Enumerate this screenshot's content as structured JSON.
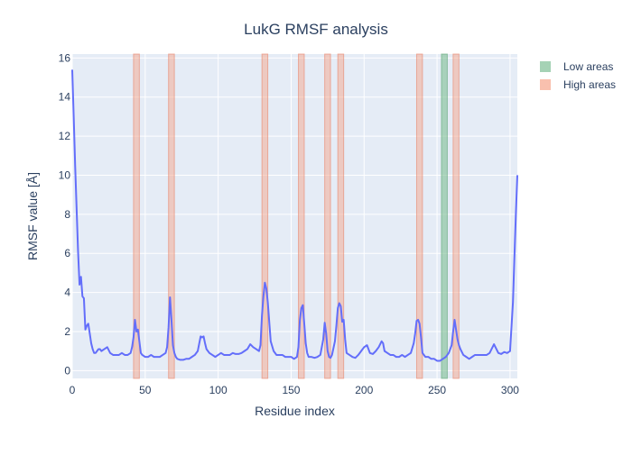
{
  "chart_data": {
    "type": "line",
    "title": "LukG RMSF analysis",
    "xlabel": "Residue index",
    "ylabel": "RMSF value [Å]",
    "xlim": [
      0,
      305
    ],
    "ylim": [
      -0.4,
      16.2
    ],
    "xticks": [
      0,
      50,
      100,
      150,
      200,
      250,
      300
    ],
    "yticks": [
      0,
      2,
      4,
      6,
      8,
      10,
      12,
      14,
      16
    ],
    "grid": true,
    "legend_position": "top-right",
    "colors": {
      "line": "#636efa",
      "high_band": "#f6a58c",
      "low_band": "#7fbf95",
      "plot_bg": "#e5ecf6"
    },
    "legend": [
      {
        "name": "Low areas",
        "color": "#7fbf95"
      },
      {
        "name": "High areas",
        "color": "#f6a58c"
      }
    ],
    "low_areas": [
      [
        253,
        257
      ]
    ],
    "high_areas": [
      [
        42,
        46
      ],
      [
        66,
        70
      ],
      [
        130,
        134
      ],
      [
        155,
        159
      ],
      [
        173,
        177
      ],
      [
        182,
        186
      ],
      [
        236,
        240
      ],
      [
        261,
        265
      ]
    ],
    "series": [
      {
        "x": [
          0,
          1,
          2,
          3,
          4,
          5,
          6,
          7,
          8,
          9,
          10,
          11,
          12,
          13,
          14,
          15,
          16,
          17,
          18,
          19,
          20,
          22,
          24,
          26,
          28,
          30,
          32,
          34,
          36,
          38,
          40,
          41,
          42,
          43,
          44,
          45,
          46,
          47,
          48,
          50,
          52,
          54,
          56,
          58,
          60,
          62,
          64,
          65,
          66,
          67,
          68,
          69,
          70,
          71,
          72,
          74,
          76,
          78,
          80,
          82,
          84,
          86,
          88,
          89,
          90,
          91,
          92,
          94,
          96,
          98,
          100,
          102,
          104,
          106,
          108,
          110,
          112,
          114,
          116,
          118,
          120,
          122,
          124,
          126,
          128,
          129,
          130,
          131,
          132,
          133,
          134,
          135,
          136,
          138,
          140,
          142,
          144,
          146,
          148,
          150,
          152,
          154,
          155,
          156,
          157,
          158,
          159,
          160,
          161,
          162,
          164,
          166,
          168,
          170,
          171,
          172,
          173,
          174,
          175,
          176,
          177,
          178,
          180,
          181,
          182,
          183,
          184,
          185,
          186,
          187,
          188,
          190,
          192,
          194,
          196,
          198,
          200,
          202,
          204,
          206,
          208,
          210,
          212,
          213,
          214,
          216,
          218,
          220,
          222,
          224,
          226,
          228,
          230,
          232,
          234,
          235,
          236,
          237,
          238,
          239,
          240,
          242,
          244,
          246,
          248,
          250,
          252,
          254,
          256,
          258,
          260,
          261,
          262,
          263,
          264,
          265,
          266,
          268,
          270,
          272,
          274,
          276,
          278,
          280,
          282,
          284,
          286,
          288,
          289,
          290,
          292,
          294,
          296,
          298,
          300,
          302,
          303,
          304,
          305
        ],
        "y": [
          15.4,
          13.0,
          10.5,
          8.3,
          6.1,
          4.4,
          4.8,
          3.8,
          3.7,
          2.1,
          2.3,
          2.4,
          1.9,
          1.4,
          1.1,
          0.9,
          0.9,
          1.0,
          1.1,
          1.1,
          1.0,
          1.1,
          1.2,
          0.9,
          0.8,
          0.8,
          0.8,
          0.9,
          0.8,
          0.8,
          0.9,
          1.2,
          1.7,
          2.6,
          2.0,
          2.1,
          1.5,
          0.9,
          0.8,
          0.7,
          0.7,
          0.8,
          0.7,
          0.7,
          0.7,
          0.8,
          0.9,
          1.2,
          2.2,
          3.75,
          2.6,
          1.3,
          0.9,
          0.7,
          0.6,
          0.55,
          0.55,
          0.6,
          0.6,
          0.7,
          0.8,
          1.0,
          1.75,
          1.7,
          1.75,
          1.4,
          1.1,
          0.9,
          0.8,
          0.7,
          0.8,
          0.9,
          0.8,
          0.8,
          0.8,
          0.9,
          0.85,
          0.85,
          0.9,
          1.0,
          1.1,
          1.35,
          1.2,
          1.1,
          1.0,
          1.3,
          2.8,
          3.8,
          4.5,
          4.2,
          3.5,
          2.5,
          1.5,
          1.0,
          0.8,
          0.8,
          0.8,
          0.7,
          0.7,
          0.7,
          0.6,
          0.7,
          1.2,
          2.6,
          3.2,
          3.35,
          2.4,
          1.4,
          0.9,
          0.7,
          0.7,
          0.65,
          0.7,
          0.8,
          1.2,
          1.6,
          2.45,
          1.9,
          1.0,
          0.7,
          0.65,
          0.8,
          1.5,
          2.3,
          3.2,
          3.45,
          3.3,
          2.5,
          2.6,
          1.6,
          0.9,
          0.8,
          0.7,
          0.65,
          0.8,
          1.0,
          1.2,
          1.3,
          0.9,
          0.85,
          1.0,
          1.2,
          1.5,
          1.4,
          1.0,
          0.9,
          0.8,
          0.8,
          0.7,
          0.7,
          0.8,
          0.7,
          0.8,
          0.9,
          1.4,
          1.9,
          2.55,
          2.6,
          2.4,
          1.7,
          0.9,
          0.7,
          0.7,
          0.6,
          0.6,
          0.5,
          0.5,
          0.6,
          0.7,
          0.9,
          1.3,
          2.0,
          2.6,
          2.1,
          1.6,
          1.3,
          1.1,
          0.8,
          0.7,
          0.6,
          0.7,
          0.8,
          0.8,
          0.8,
          0.8,
          0.8,
          0.9,
          1.2,
          1.35,
          1.2,
          0.9,
          0.85,
          0.95,
          0.9,
          1.0,
          3.5,
          5.8,
          8.0,
          10.0
        ]
      }
    ]
  }
}
